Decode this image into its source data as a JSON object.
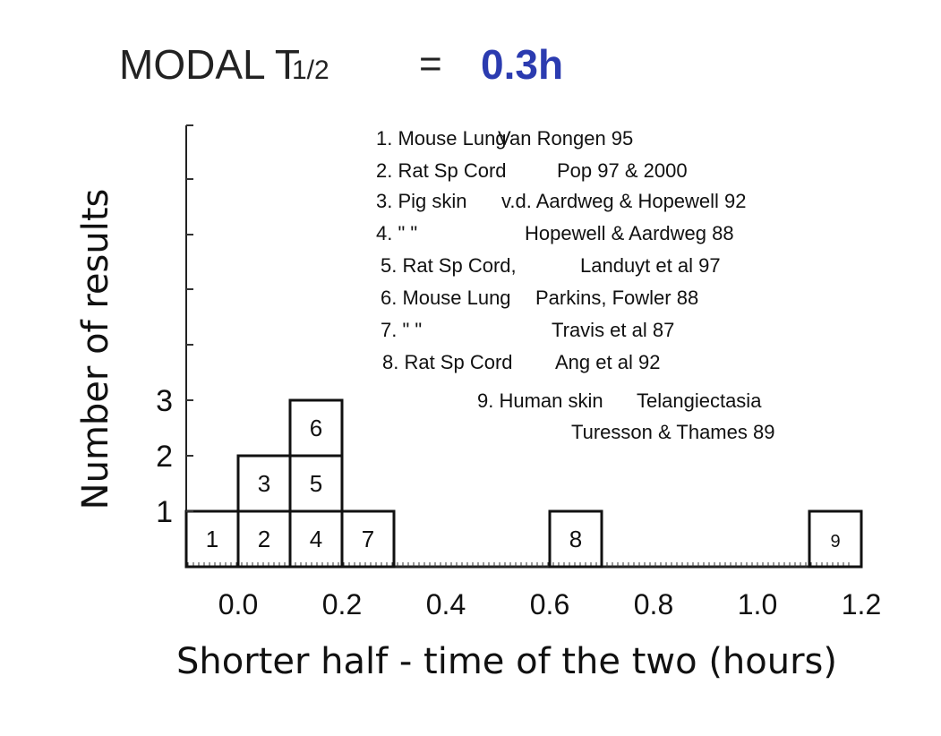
{
  "header": {
    "label": "MODAL T",
    "subscript": "1/2",
    "equals": "=",
    "value": "0.3h",
    "value_color": "#2b3bb0"
  },
  "chart_data": {
    "type": "bar",
    "xlabel": "Shorter half - time of the two (hours)",
    "ylabel": "Number of results",
    "x_ticks": [
      "0.0",
      "0.2",
      "0.4",
      "0.6",
      "0.8",
      "1.0",
      "1.2"
    ],
    "y_ticks": [
      "1",
      "2",
      "3"
    ],
    "xlim": [
      -0.1,
      1.2
    ],
    "ylim": [
      0,
      3
    ],
    "bin_width": 0.1,
    "bins": [
      {
        "x_start": -0.1,
        "count": 1,
        "labels": [
          "1"
        ]
      },
      {
        "x_start": 0.0,
        "count": 2,
        "labels": [
          "2",
          "3"
        ]
      },
      {
        "x_start": 0.1,
        "count": 3,
        "labels": [
          "4",
          "5",
          "6"
        ]
      },
      {
        "x_start": 0.2,
        "count": 1,
        "labels": [
          "7"
        ]
      },
      {
        "x_start": 0.6,
        "count": 1,
        "labels": [
          "8"
        ]
      },
      {
        "x_start": 1.1,
        "count": 1,
        "labels": [
          "9"
        ]
      }
    ],
    "legend": [
      {
        "num": "1. Mouse Lung",
        "ref": "Van Rongen 95"
      },
      {
        "num": "2. Rat Sp Cord",
        "ref": "Pop 97 & 2000"
      },
      {
        "num": "3. Pig skin",
        "ref": "v.d. Aardweg & Hopewell 92"
      },
      {
        "num": "4.  \"      \"",
        "ref": "Hopewell & Aardweg 88"
      },
      {
        "num": "5. Rat Sp Cord,",
        "ref": "Landuyt et al 97"
      },
      {
        "num": "6. Mouse Lung",
        "ref": "Parkins, Fowler 88"
      },
      {
        "num": "7.      \"       \"",
        "ref": "Travis et al 87"
      },
      {
        "num": "8. Rat Sp Cord",
        "ref": "Ang et al 92"
      },
      {
        "num": "9. Human  skin",
        "ref": "Telangiectasia"
      },
      {
        "num": "",
        "ref": "Turesson & Thames 89"
      }
    ]
  }
}
